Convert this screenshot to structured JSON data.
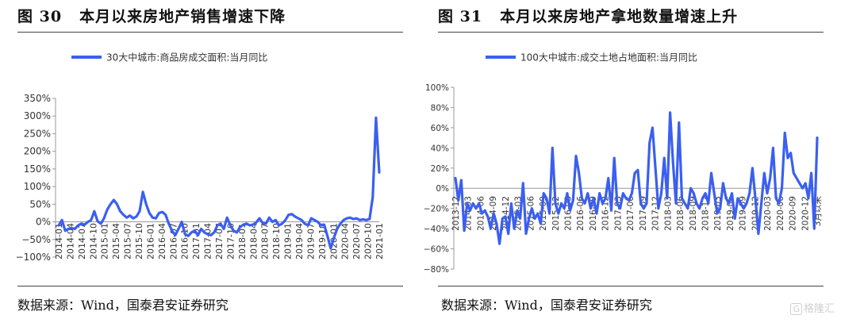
{
  "charts": [
    {
      "fig_label": "图 30",
      "title": "本月以来房地产销售增速下降",
      "source": "数据来源：Wind，国泰君安证券研究"
    },
    {
      "fig_label": "图 31",
      "title": "本月以来房地产拿地数量增速上升",
      "source": "数据来源：Wind，国泰君安证券研究"
    }
  ],
  "watermark": {
    "icon": "logo-box",
    "text": "格隆汇",
    "box_glyph": "G"
  },
  "colors": {
    "series": "#3B5FF0",
    "axis": "#999999",
    "text": "#111111"
  },
  "chart_data": [
    {
      "type": "line",
      "title": "",
      "legend_position": "top",
      "series": [
        {
          "name": "30大中城市:商品房成交面积:当月同比",
          "values": [
            -10,
            5,
            -25,
            -20,
            -18,
            -20,
            -10,
            -5,
            -8,
            0,
            5,
            30,
            2,
            -5,
            10,
            35,
            50,
            62,
            50,
            30,
            20,
            12,
            18,
            10,
            15,
            30,
            85,
            50,
            25,
            12,
            10,
            25,
            28,
            20,
            -5,
            -25,
            -38,
            -20,
            0,
            -35,
            -40,
            -30,
            -25,
            -38,
            -20,
            -30,
            -35,
            -38,
            -30,
            -10,
            -5,
            -20,
            12,
            -10,
            -25,
            -30,
            -15,
            -8,
            -5,
            -10,
            -8,
            -2,
            10,
            -3,
            -5,
            12,
            0,
            5,
            -10,
            -5,
            5,
            20,
            22,
            15,
            10,
            5,
            -5,
            -10,
            10,
            5,
            0,
            -10,
            -8,
            -40,
            -75,
            -45,
            -20,
            -5,
            5,
            10,
            12,
            8,
            10,
            5,
            7,
            5,
            8,
            70,
            295,
            140
          ]
        }
      ],
      "x_tick_labels": [
        "2014-01",
        "2014-04",
        "2014-07",
        "2014-10",
        "2015-01",
        "2015-04",
        "2015-07",
        "2015-10",
        "2016-01",
        "2016-04",
        "2016-07",
        "2016-10",
        "2017-01",
        "2017-04",
        "2017-07",
        "2017-10",
        "2018-01",
        "2018-04",
        "2018-07",
        "2018-10",
        "2019-01",
        "2019-04",
        "2019-07",
        "2019-10",
        "2020-01",
        "2020-04",
        "2020-07",
        "2020-10",
        "2021-01"
      ],
      "y_ticks": [
        -100,
        -50,
        0,
        50,
        100,
        150,
        200,
        250,
        300,
        350
      ],
      "y_tick_labels": [
        "−100%",
        "−50%",
        "0%",
        "50%",
        "100%",
        "150%",
        "200%",
        "250%",
        "300%",
        "350%"
      ],
      "ylim": [
        -100,
        350
      ],
      "grid": false
    },
    {
      "type": "line",
      "title": "",
      "legend_position": "top",
      "series": [
        {
          "name": "100大中城市:成交土地占地面积:当月同比",
          "values": [
            10,
            -12,
            8,
            -42,
            -15,
            -22,
            -15,
            -20,
            -15,
            -25,
            -22,
            -28,
            -40,
            -25,
            -35,
            -55,
            -30,
            -28,
            -45,
            -15,
            -40,
            -22,
            -30,
            5,
            -45,
            -30,
            -20,
            -30,
            -25,
            -35,
            -5,
            -10,
            -25,
            40,
            -15,
            -25,
            -15,
            -20,
            -5,
            -22,
            -12,
            32,
            15,
            -10,
            -15,
            -5,
            -20,
            -10,
            -25,
            -5,
            -15,
            -10,
            10,
            -22,
            30,
            -15,
            -20,
            -5,
            -10,
            -12,
            -5,
            15,
            18,
            -15,
            -20,
            -15,
            45,
            60,
            20,
            -20,
            -5,
            30,
            -10,
            75,
            25,
            -15,
            65,
            -10,
            -15,
            -20,
            0,
            -5,
            -15,
            -20,
            -10,
            -5,
            -15,
            15,
            -5,
            -25,
            -20,
            5,
            -10,
            -15,
            -5,
            -30,
            -10,
            -15,
            -20,
            -15,
            -5,
            20,
            -10,
            -45,
            -15,
            15,
            -5,
            10,
            40,
            -10,
            -15,
            0,
            55,
            30,
            35,
            15,
            10,
            5,
            0,
            5,
            -10,
            15,
            -40,
            50
          ]
        }
      ],
      "x_tick_labels": [
        "2013-12",
        "2014-03",
        "2014-06",
        "2014-09",
        "2014-12",
        "2015-03",
        "2015-06",
        "2015-09",
        "2015-12",
        "2016-03",
        "2016-06",
        "2016-09",
        "2016-12",
        "2017-03",
        "2017-06",
        "2017-09",
        "2017-12",
        "2018-03",
        "2018-06",
        "2018-09",
        "2018-12",
        "2019-03",
        "2019-06",
        "2019-09",
        "2019-12",
        "2020-03",
        "2020-06",
        "2020-09",
        "2020-12",
        "3月以来"
      ],
      "y_ticks": [
        -80,
        -60,
        -40,
        -20,
        0,
        20,
        40,
        60,
        80,
        100
      ],
      "y_tick_labels": [
        "−80%",
        "−60%",
        "−40%",
        "−20%",
        "0%",
        "20%",
        "40%",
        "60%",
        "80%",
        "100%"
      ],
      "ylim": [
        -80,
        100
      ],
      "grid": false
    }
  ]
}
